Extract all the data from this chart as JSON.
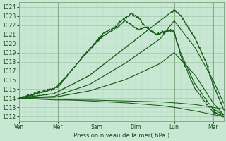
{
  "xlabel": "Pression niveau de la mer( hPa )",
  "bg_color": "#c8e8d4",
  "grid_major_color": "#a0c8a8",
  "grid_minor_color": "#b8d8c0",
  "line_color": "#1a5c1a",
  "ylim": [
    1011.5,
    1024.5
  ],
  "yticks": [
    1012,
    1013,
    1014,
    1015,
    1016,
    1017,
    1018,
    1019,
    1020,
    1021,
    1022,
    1023,
    1024
  ],
  "xtick_labels": [
    "Ven",
    "Mer",
    "Sam",
    "Dim",
    "Lun",
    "Mar"
  ],
  "xtick_positions": [
    0.0,
    1.1,
    2.2,
    3.3,
    4.4,
    5.5
  ],
  "xlim": [
    0,
    5.8
  ],
  "num_x": 5.8
}
